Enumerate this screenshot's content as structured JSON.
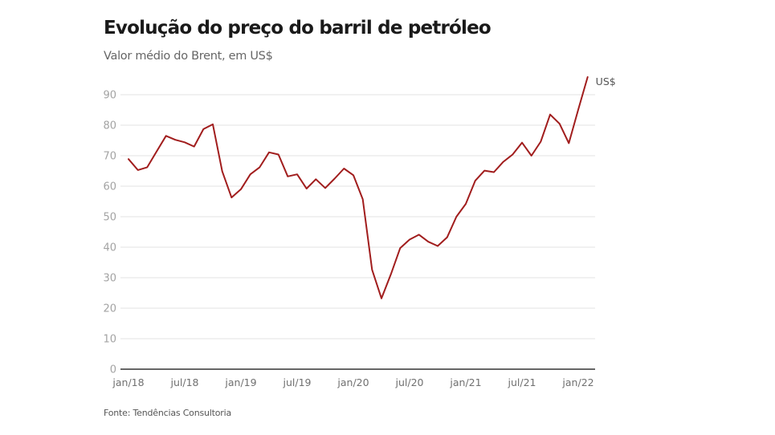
{
  "header": {
    "title": "Evolução do preço do barril de petróleo",
    "subtitle": "Valor médio do Brent, em US$"
  },
  "footer": {
    "source": "Fonte: Tendências Consultoria"
  },
  "chart_data": {
    "type": "line",
    "title": "Evolução do preço do barril de petróleo",
    "subtitle": "Valor médio do Brent, em US$",
    "xlabel": "",
    "ylabel": "",
    "unit_label": "US$",
    "ylim": [
      0,
      90
    ],
    "yticks": [
      0,
      10,
      20,
      30,
      40,
      50,
      60,
      70,
      80,
      90
    ],
    "xtick_labels": [
      {
        "label": "jan/18",
        "index": 0
      },
      {
        "label": "jul/18",
        "index": 6
      },
      {
        "label": "jan/19",
        "index": 12
      },
      {
        "label": "jul/19",
        "index": 18
      },
      {
        "label": "jan/20",
        "index": 24
      },
      {
        "label": "jul/20",
        "index": 30
      },
      {
        "label": "jan/21",
        "index": 36
      },
      {
        "label": "jul/21",
        "index": 42
      },
      {
        "label": "jan/22",
        "index": 48
      }
    ],
    "grid": true,
    "line_color": "#a11d1d",
    "x": [
      "jan/18",
      "fev/18",
      "mar/18",
      "abr/18",
      "mai/18",
      "jun/18",
      "jul/18",
      "ago/18",
      "set/18",
      "out/18",
      "nov/18",
      "dez/18",
      "jan/19",
      "fev/19",
      "mar/19",
      "abr/19",
      "mai/19",
      "jun/19",
      "jul/19",
      "ago/19",
      "set/19",
      "out/19",
      "nov/19",
      "dez/19",
      "jan/20",
      "fev/20",
      "mar/20",
      "abr/20",
      "mai/20",
      "jun/20",
      "jul/20",
      "ago/20",
      "set/20",
      "out/20",
      "nov/20",
      "dez/20",
      "jan/21",
      "fev/21",
      "mar/21",
      "abr/21",
      "mai/21",
      "jun/21",
      "jul/21",
      "ago/21",
      "set/21",
      "out/21",
      "nov/21",
      "dez/21",
      "jan/22",
      "fev/22"
    ],
    "series": [
      {
        "name": "Brent (US$)",
        "values": [
          68.9,
          65.3,
          66.2,
          71.4,
          76.5,
          75.2,
          74.4,
          73.0,
          78.7,
          80.3,
          64.9,
          56.3,
          59.0,
          63.9,
          66.2,
          71.1,
          70.4,
          63.2,
          63.9,
          59.2,
          62.3,
          59.4,
          62.5,
          65.8,
          63.6,
          55.7,
          32.6,
          23.2,
          31.1,
          39.7,
          42.5,
          44.1,
          41.8,
          40.4,
          43.2,
          50.0,
          54.2,
          61.8,
          65.1,
          64.6,
          68.0,
          70.4,
          74.3,
          70.0,
          74.6,
          83.5,
          80.5,
          74.1,
          85.1,
          95.8
        ]
      }
    ]
  }
}
